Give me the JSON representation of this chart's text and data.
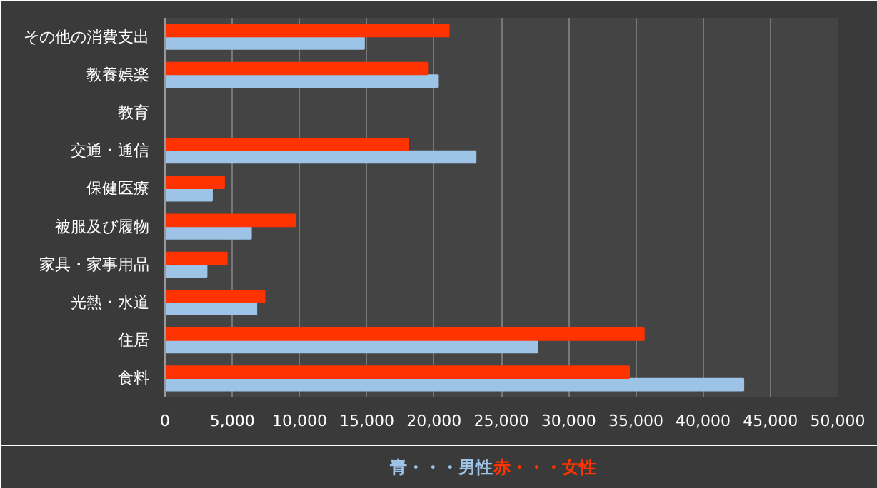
{
  "chart_data": {
    "type": "bar",
    "orientation": "horizontal",
    "categories": [
      "その他の消費支出",
      "教養娯楽",
      "教育",
      "交通・通信",
      "保健医療",
      "被服及び履物",
      "家具・家事用品",
      "光熱・水道",
      "住居",
      "食料"
    ],
    "series": [
      {
        "name": "青・・・男性",
        "color": "#9dc3e6",
        "values": [
          14800,
          20300,
          0,
          23100,
          3500,
          6400,
          3100,
          6800,
          27700,
          43000
        ]
      },
      {
        "name": "赤・・・女性",
        "color": "#ff3300",
        "values": [
          21100,
          19500,
          0,
          18100,
          4400,
          9700,
          4600,
          7400,
          35600,
          34500
        ]
      }
    ],
    "xlim": [
      0,
      50000
    ],
    "xticks": [
      0,
      {
        "value": 5000,
        "label": "5,000"
      },
      {
        "value": 10000,
        "label": "10,000"
      },
      {
        "value": 15000,
        "label": "15,000"
      },
      {
        "value": 20000,
        "label": "20,000"
      },
      {
        "value": 25000,
        "label": "25,000"
      },
      {
        "value": 30000,
        "label": "30,000"
      },
      {
        "value": 35000,
        "label": "35,000"
      },
      {
        "value": 40000,
        "label": "40,000"
      },
      {
        "value": 45000,
        "label": "45,000"
      },
      {
        "value": 50000,
        "label": "50,000"
      }
    ],
    "grid": "x"
  }
}
